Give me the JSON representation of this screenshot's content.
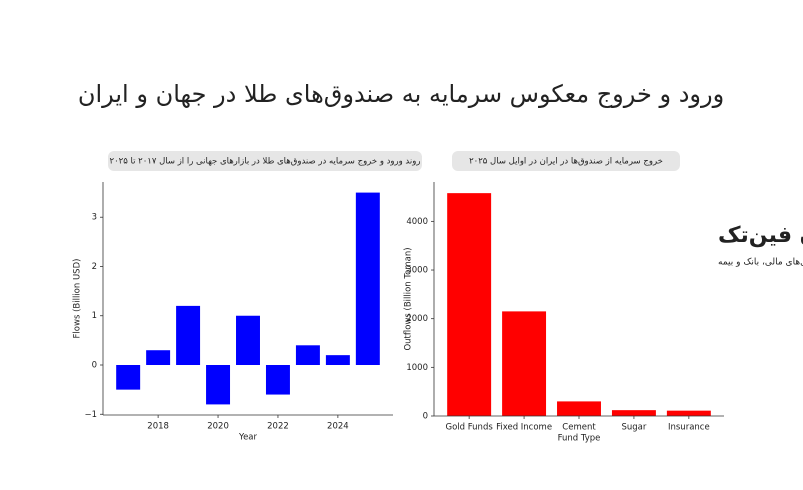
{
  "title": "ورود و خروج معکوس سرمایه به صندوق‌های طلا در جهان و ایران",
  "watermark": {
    "brand": "ایران فین‌تک",
    "tagline": "رسانه فناوری‌های مالی، بانک و بیمه"
  },
  "chart_data": [
    {
      "type": "bar",
      "title": "روند ورود و خروج سرمایه در صندوق‌های طلا در بازارهای جهانی را از سال ۲۰۱۷ تا ۲۰۲۵",
      "x": [
        2017,
        2018,
        2019,
        2020,
        2021,
        2022,
        2023,
        2024,
        2025
      ],
      "values": [
        -0.5,
        0.3,
        1.2,
        -0.8,
        1.0,
        -0.6,
        0.4,
        0.2,
        3.5
      ],
      "color": "#0000ff",
      "xlabel": "Year",
      "ylabel": "Flows (Billion USD)",
      "xlim": [
        2016.16,
        2025.84
      ],
      "xticks": [
        2018,
        2020,
        2022,
        2024
      ],
      "ylim": [
        -1.015,
        3.715
      ],
      "yticks": [
        {
          "value": -1,
          "label": "−1"
        },
        0,
        1,
        2,
        3
      ]
    },
    {
      "type": "bar",
      "title": "خروج سرمایه از صندوق‌ها  در ایران در اوایل سال ۲۰۲۵",
      "categories": [
        "Gold Funds",
        "Fixed Income",
        "Cement",
        "Sugar",
        "Insurance"
      ],
      "values": [
        4580,
        2150,
        300,
        120,
        110
      ],
      "color": "#ff0000",
      "xlabel": "Fund Type",
      "ylabel": "Outflows (Billion Toman)",
      "ylim": [
        0,
        4809
      ],
      "yticks": [
        0,
        1000,
        2000,
        3000,
        4000
      ]
    }
  ]
}
